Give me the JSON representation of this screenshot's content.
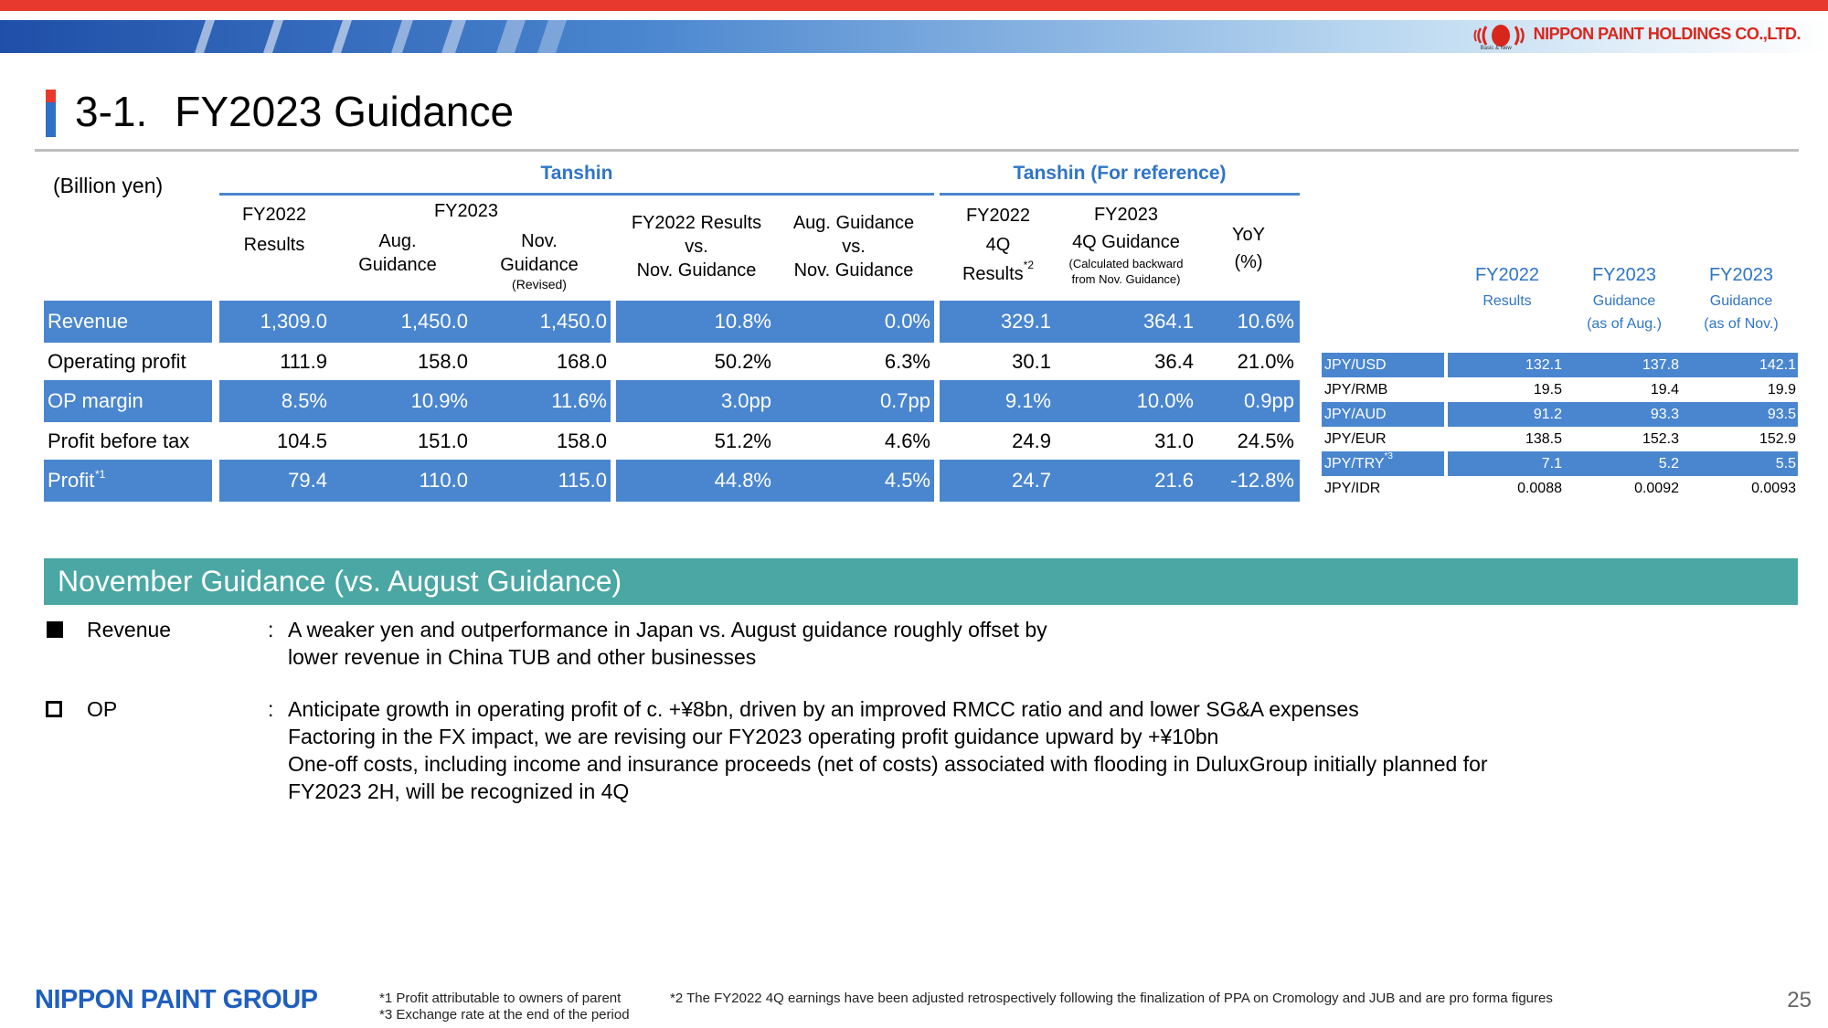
{
  "company": {
    "name": "NIPPON PAINT HOLDINGS CO.,LTD.",
    "tagline": "Basic & New",
    "accent_red": "#e8392f",
    "accent_blue": "#4a86cf"
  },
  "slide": {
    "number": "3-1.",
    "title": "FY2023 Guidance",
    "page": "25"
  },
  "main_table": {
    "unit": "(Billion yen)",
    "group_tanshin": "Tanshin",
    "group_reference": "Tanshin (For reference)",
    "headers": {
      "fy2022": "FY2022",
      "results": "Results",
      "fy2023": "FY2023",
      "aug": "Aug.",
      "guidance": "Guidance",
      "nov": "Nov.",
      "guidance2": "Guidance",
      "revised": "(Revised)",
      "cmp1_a": "FY2022 Results",
      "cmp1_b": "vs.",
      "cmp1_c": "Nov. Guidance",
      "cmp2_a": "Aug. Guidance",
      "cmp2_b": "vs.",
      "cmp2_c": "Nov. Guidance",
      "q4_a": "FY2022",
      "q4_b": "4Q",
      "q4_c": "Results",
      "q4_sup": "*2",
      "g4_a": "FY2023",
      "g4_b": "4Q Guidance",
      "g4_c": "(Calculated backward",
      "g4_d": "from Nov. Guidance)",
      "yoy_a": "YoY",
      "yoy_b": "(%)"
    },
    "rows": [
      {
        "label": "Revenue",
        "sup": "",
        "blue": true,
        "v": [
          "1,309.0",
          "1,450.0",
          "1,450.0",
          "10.8%",
          "0.0%",
          "329.1",
          "364.1",
          "10.6%"
        ]
      },
      {
        "label": "Operating profit",
        "sup": "",
        "blue": false,
        "v": [
          "111.9",
          "158.0",
          "168.0",
          "50.2%",
          "6.3%",
          "30.1",
          "36.4",
          "21.0%"
        ]
      },
      {
        "label": "OP margin",
        "sup": "",
        "blue": true,
        "v": [
          "8.5%",
          "10.9%",
          "11.6%",
          "3.0pp",
          "0.7pp",
          "9.1%",
          "10.0%",
          "0.9pp"
        ]
      },
      {
        "label": "Profit before tax",
        "sup": "",
        "blue": false,
        "v": [
          "104.5",
          "151.0",
          "158.0",
          "51.2%",
          "4.6%",
          "24.9",
          "31.0",
          "24.5%"
        ]
      },
      {
        "label": "Profit",
        "sup": "*1",
        "blue": true,
        "v": [
          "79.4",
          "110.0",
          "115.0",
          "44.8%",
          "4.5%",
          "24.7",
          "21.6",
          "-12.8%"
        ]
      }
    ]
  },
  "fx_table": {
    "headers": [
      {
        "title": "FY2022",
        "sub1": "Results",
        "sub2": ""
      },
      {
        "title": "FY2023",
        "sub1": "Guidance",
        "sub2": "(as of Aug.)"
      },
      {
        "title": "FY2023",
        "sub1": "Guidance",
        "sub2": "(as of Nov.)"
      }
    ],
    "rows": [
      {
        "label": "JPY/USD",
        "sup": "",
        "blue": true,
        "v": [
          "132.1",
          "137.8",
          "142.1"
        ]
      },
      {
        "label": "JPY/RMB",
        "sup": "",
        "blue": false,
        "v": [
          "19.5",
          "19.4",
          "19.9"
        ]
      },
      {
        "label": "JPY/AUD",
        "sup": "",
        "blue": true,
        "v": [
          "91.2",
          "93.3",
          "93.5"
        ]
      },
      {
        "label": "JPY/EUR",
        "sup": "",
        "blue": false,
        "v": [
          "138.5",
          "152.3",
          "152.9"
        ]
      },
      {
        "label": "JPY/TRY",
        "sup": "*3",
        "blue": true,
        "v": [
          "7.1",
          "5.2",
          "5.5"
        ]
      },
      {
        "label": "JPY/IDR",
        "sup": "",
        "blue": false,
        "v": [
          "0.0088",
          "0.0092",
          "0.0093"
        ]
      }
    ]
  },
  "guidance": {
    "heading": "November Guidance (vs. August Guidance)",
    "items": [
      {
        "label": "Revenue",
        "colon": ":",
        "lines": [
          "A weaker yen and outperformance in Japan vs. August guidance roughly offset by",
          "lower revenue in China TUB and other businesses"
        ]
      },
      {
        "label": "OP",
        "colon": ":",
        "lines": [
          "Anticipate growth in operating profit of c. +¥8bn, driven by an improved RMCC ratio and and lower SG&A expenses",
          "Factoring in the FX impact, we are revising our FY2023 operating profit guidance upward by +¥10bn",
          "One-off costs, including income and insurance proceeds (net of costs) associated with flooding in DuluxGroup initially planned for",
          "FY2023 2H, will be recognized in 4Q"
        ]
      }
    ]
  },
  "footer": {
    "logo": "NIPPON PAINT GROUP",
    "note1": "*1 Profit attributable to owners of parent",
    "note2": "*2 The FY2022 4Q earnings have been adjusted retrospectively following the finalization of PPA on Cromology and JUB and are pro forma figures",
    "note3": "*3 Exchange rate at the end of the period"
  }
}
